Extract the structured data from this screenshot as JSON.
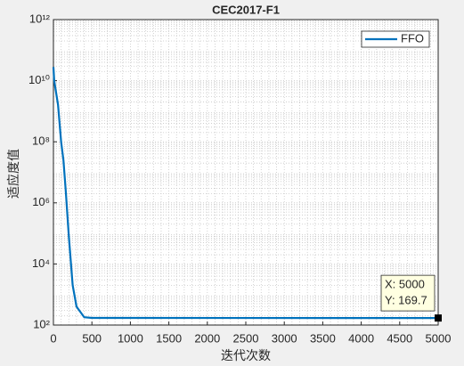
{
  "chart_data": {
    "type": "line",
    "title": "CEC2017-F1",
    "x_label": "迭代次数",
    "y_label": "适应度值",
    "x": [
      0,
      10,
      60,
      100,
      130,
      160,
      200,
      250,
      300,
      400,
      500,
      5000
    ],
    "series": [
      {
        "name": "FFO",
        "color": "#0072bd",
        "values": [
          28000000000,
          10000000000,
          1600000000,
          100000000,
          25000000,
          2500000,
          80000,
          2000,
          400,
          180,
          171,
          169.7
        ]
      }
    ],
    "xlim": [
      0,
      5000
    ],
    "xticks": [
      0,
      500,
      1000,
      1500,
      2000,
      2500,
      3000,
      3500,
      4000,
      4500,
      5000
    ],
    "ylim": [
      100,
      1000000000000
    ],
    "yticks": [
      {
        "value": 100,
        "label": "10²"
      },
      {
        "value": 10000,
        "label": "10⁴"
      },
      {
        "value": 1000000,
        "label": "10⁶"
      },
      {
        "value": 100000000,
        "label": "10⁸"
      },
      {
        "value": 10000000000,
        "label": "10¹⁰"
      },
      {
        "value": 1000000000000,
        "label": "10¹²"
      }
    ],
    "yscale": "log",
    "grid": true,
    "legend": "northeast",
    "datatip": {
      "x": 5000,
      "y": 169.7,
      "x_text": "X: 5000",
      "y_text": "Y: 169.7"
    }
  }
}
